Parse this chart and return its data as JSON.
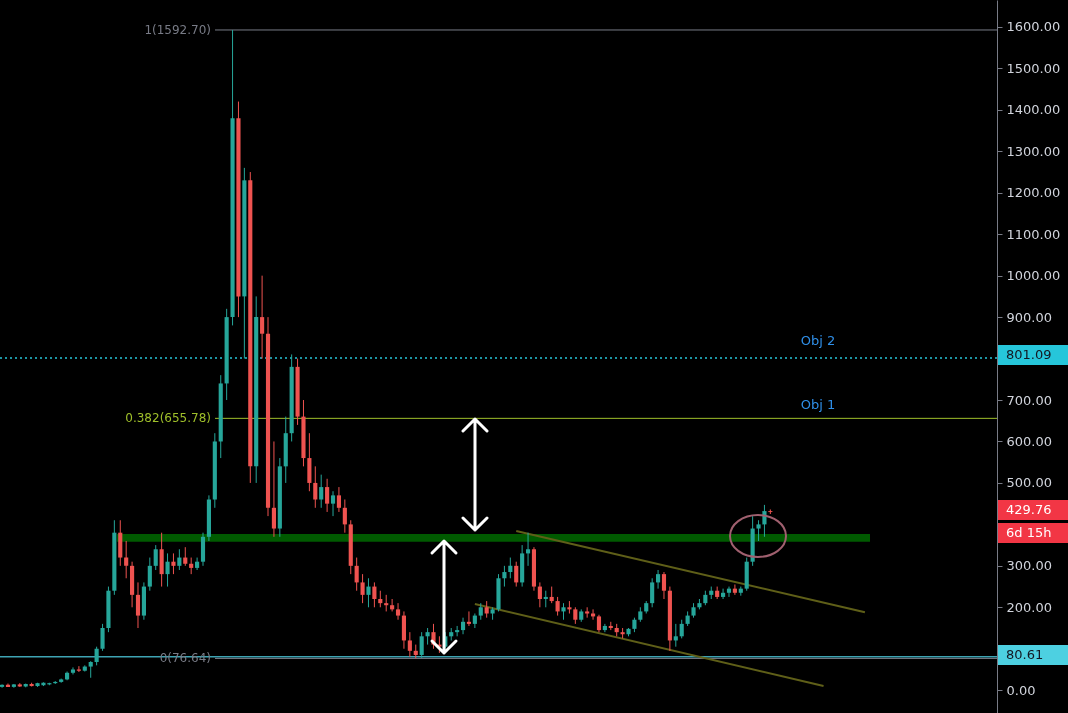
{
  "chart_data": {
    "type": "candlestick",
    "categories": [
      null,
      null,
      null,
      null,
      null,
      null,
      null,
      null,
      null,
      null,
      null,
      null,
      null,
      null,
      null,
      null,
      null,
      null,
      null,
      null,
      null,
      null,
      null,
      null,
      null,
      null,
      null,
      null,
      null,
      null,
      null,
      null,
      null,
      null,
      null,
      null,
      null,
      null,
      null,
      null,
      null,
      null,
      null,
      null,
      null,
      null,
      null,
      null,
      null,
      null,
      null,
      null,
      null,
      null,
      null,
      null,
      null,
      null,
      null,
      null,
      null,
      null,
      null,
      null,
      null,
      null,
      null,
      null,
      null,
      null,
      null,
      null,
      null,
      null,
      null,
      null,
      null,
      null,
      null,
      null,
      null,
      null,
      null,
      null,
      null,
      null,
      null,
      null,
      null,
      null,
      null,
      null,
      null,
      null,
      null,
      null,
      null,
      null,
      null,
      null,
      null,
      null,
      null,
      null,
      null,
      null,
      null,
      null,
      null,
      null,
      null,
      null,
      null,
      null,
      null,
      null,
      null,
      null,
      null,
      null,
      null,
      null,
      null,
      null,
      null,
      null,
      null,
      null,
      null,
      null,
      null,
      null,
      null,
      null,
      null,
      null,
      null,
      null,
      null,
      null,
      null,
      null,
      null,
      null,
      null,
      null,
      null,
      null,
      null,
      null,
      null,
      null,
      null,
      null,
      null,
      null,
      null,
      null,
      null,
      null,
      null,
      null,
      null,
      null,
      null,
      null,
      null,
      null,
      null
    ],
    "ohlc": [
      [
        8,
        14,
        6,
        13
      ],
      [
        13,
        16,
        8,
        8
      ],
      [
        8,
        15,
        6,
        14
      ],
      [
        14,
        17,
        8,
        9
      ],
      [
        9,
        16,
        7,
        15
      ],
      [
        15,
        18,
        9,
        10
      ],
      [
        10,
        18,
        8,
        17
      ],
      [
        12,
        19,
        10,
        18
      ],
      [
        14,
        18,
        12,
        17
      ],
      [
        17,
        22,
        15,
        20
      ],
      [
        20,
        28,
        18,
        26
      ],
      [
        26,
        45,
        24,
        42
      ],
      [
        42,
        55,
        38,
        50
      ],
      [
        50,
        58,
        44,
        47
      ],
      [
        47,
        60,
        45,
        57
      ],
      [
        57,
        70,
        30,
        68
      ],
      [
        68,
        105,
        60,
        100
      ],
      [
        100,
        160,
        95,
        150
      ],
      [
        150,
        250,
        140,
        240
      ],
      [
        240,
        410,
        230,
        380
      ],
      [
        380,
        410,
        300,
        320
      ],
      [
        320,
        360,
        270,
        300
      ],
      [
        300,
        310,
        200,
        230
      ],
      [
        230,
        260,
        150,
        180
      ],
      [
        180,
        260,
        170,
        250
      ],
      [
        250,
        320,
        240,
        300
      ],
      [
        300,
        350,
        290,
        340
      ],
      [
        340,
        380,
        250,
        280
      ],
      [
        280,
        330,
        250,
        310
      ],
      [
        310,
        330,
        280,
        300
      ],
      [
        300,
        340,
        290,
        320
      ],
      [
        320,
        345,
        300,
        305
      ],
      [
        305,
        320,
        280,
        295
      ],
      [
        295,
        320,
        290,
        310
      ],
      [
        310,
        380,
        300,
        370
      ],
      [
        370,
        470,
        360,
        460
      ],
      [
        460,
        620,
        440,
        600
      ],
      [
        600,
        760,
        560,
        740
      ],
      [
        740,
        920,
        700,
        900
      ],
      [
        900,
        1592.7,
        880,
        1380
      ],
      [
        1380,
        1420,
        900,
        950
      ],
      [
        950,
        1260,
        800,
        1230
      ],
      [
        1230,
        1250,
        500,
        540
      ],
      [
        540,
        950,
        500,
        900
      ],
      [
        900,
        1000,
        800,
        860
      ],
      [
        860,
        900,
        420,
        440
      ],
      [
        440,
        600,
        370,
        390
      ],
      [
        390,
        560,
        370,
        540
      ],
      [
        540,
        660,
        500,
        620
      ],
      [
        620,
        810,
        600,
        780
      ],
      [
        780,
        800,
        640,
        660
      ],
      [
        660,
        700,
        540,
        560
      ],
      [
        560,
        620,
        480,
        500
      ],
      [
        500,
        540,
        440,
        460
      ],
      [
        460,
        520,
        440,
        490
      ],
      [
        490,
        510,
        430,
        450
      ],
      [
        450,
        480,
        420,
        470
      ],
      [
        470,
        490,
        430,
        440
      ],
      [
        440,
        460,
        380,
        400
      ],
      [
        400,
        410,
        280,
        300
      ],
      [
        300,
        320,
        240,
        260
      ],
      [
        260,
        280,
        210,
        230
      ],
      [
        230,
        270,
        200,
        250
      ],
      [
        250,
        260,
        200,
        220
      ],
      [
        220,
        240,
        200,
        210
      ],
      [
        210,
        230,
        190,
        205
      ],
      [
        205,
        220,
        190,
        195
      ],
      [
        195,
        210,
        170,
        180
      ],
      [
        180,
        190,
        100,
        120
      ],
      [
        120,
        140,
        80,
        95
      ],
      [
        95,
        110,
        77,
        85
      ],
      [
        85,
        140,
        78,
        130
      ],
      [
        130,
        150,
        110,
        140
      ],
      [
        140,
        160,
        100,
        110
      ],
      [
        110,
        130,
        90,
        105
      ],
      [
        105,
        140,
        100,
        130
      ],
      [
        130,
        150,
        120,
        140
      ],
      [
        140,
        155,
        130,
        145
      ],
      [
        145,
        175,
        135,
        165
      ],
      [
        165,
        190,
        155,
        160
      ],
      [
        160,
        185,
        150,
        180
      ],
      [
        180,
        210,
        170,
        200
      ],
      [
        200,
        215,
        175,
        185
      ],
      [
        185,
        200,
        170,
        195
      ],
      [
        195,
        280,
        190,
        270
      ],
      [
        270,
        300,
        250,
        285
      ],
      [
        285,
        320,
        270,
        300
      ],
      [
        300,
        310,
        250,
        260
      ],
      [
        260,
        350,
        250,
        330
      ],
      [
        330,
        380,
        300,
        340
      ],
      [
        340,
        345,
        240,
        250
      ],
      [
        250,
        260,
        200,
        220
      ],
      [
        220,
        240,
        200,
        225
      ],
      [
        225,
        250,
        210,
        215
      ],
      [
        215,
        225,
        180,
        190
      ],
      [
        190,
        210,
        170,
        200
      ],
      [
        200,
        215,
        185,
        195
      ],
      [
        195,
        200,
        160,
        170
      ],
      [
        170,
        195,
        165,
        190
      ],
      [
        190,
        200,
        175,
        185
      ],
      [
        185,
        195,
        170,
        178
      ],
      [
        178,
        182,
        140,
        145
      ],
      [
        145,
        160,
        140,
        155
      ],
      [
        155,
        165,
        145,
        150
      ],
      [
        150,
        160,
        130,
        140
      ],
      [
        140,
        150,
        125,
        135
      ],
      [
        135,
        150,
        130,
        148
      ],
      [
        148,
        175,
        140,
        170
      ],
      [
        170,
        200,
        165,
        190
      ],
      [
        190,
        215,
        185,
        210
      ],
      [
        210,
        270,
        200,
        260
      ],
      [
        260,
        290,
        245,
        280
      ],
      [
        280,
        285,
        220,
        240
      ],
      [
        240,
        250,
        95,
        120
      ],
      [
        120,
        160,
        105,
        130
      ],
      [
        130,
        170,
        125,
        160
      ],
      [
        160,
        190,
        155,
        180
      ],
      [
        180,
        210,
        175,
        200
      ],
      [
        200,
        220,
        195,
        210
      ],
      [
        210,
        240,
        205,
        230
      ],
      [
        230,
        250,
        220,
        240
      ],
      [
        240,
        250,
        220,
        225
      ],
      [
        225,
        245,
        220,
        235
      ],
      [
        235,
        250,
        225,
        245
      ],
      [
        245,
        255,
        230,
        235
      ],
      [
        235,
        250,
        228,
        245
      ],
      [
        245,
        320,
        240,
        310
      ],
      [
        310,
        420,
        300,
        390
      ],
      [
        390,
        410,
        360,
        400
      ],
      [
        400,
        447,
        370,
        432
      ],
      [
        432,
        436,
        425,
        429.76
      ],
      null,
      null,
      null,
      null,
      null,
      null,
      null,
      null,
      null,
      null,
      null,
      null,
      null,
      null,
      null,
      null,
      null,
      null,
      null,
      null,
      null,
      null,
      null,
      null,
      null,
      null,
      null,
      null,
      null,
      null,
      null,
      null,
      null,
      null,
      null,
      null,
      null,
      null
    ],
    "series": [
      {
        "type": "line",
        "color": "#5f5f18",
        "values": [
          null,
          null,
          null,
          null,
          null,
          null,
          null,
          null,
          null,
          null,
          null,
          null,
          null,
          null,
          null,
          null,
          null,
          null,
          null,
          null,
          null,
          null,
          null,
          null,
          null,
          null,
          null,
          null,
          null,
          null,
          null,
          null,
          null,
          null,
          null,
          null,
          null,
          null,
          null,
          null,
          null,
          null,
          null,
          null,
          null,
          null,
          null,
          null,
          null,
          null,
          null,
          null,
          null,
          null,
          null,
          null,
          null,
          null,
          null,
          null,
          null,
          null,
          null,
          null,
          null,
          null,
          null,
          null,
          null,
          null,
          null,
          null,
          null,
          null,
          null,
          null,
          null,
          null,
          null,
          null,
          null,
          null,
          null,
          null,
          null,
          null,
          null,
          384,
          null,
          null,
          null,
          null,
          null,
          null,
          null,
          null,
          null,
          null,
          null,
          null,
          null,
          null,
          null,
          null,
          null,
          null,
          null,
          null,
          null,
          null,
          null,
          null,
          null,
          null,
          null,
          null,
          null,
          null,
          null,
          null,
          null,
          null,
          null,
          null,
          null,
          null,
          null,
          null,
          null,
          null,
          null,
          null,
          null,
          null,
          null,
          null,
          null,
          null,
          null,
          null,
          null,
          null,
          null,
          null,
          null,
          null,
          188,
          null,
          null,
          null,
          null,
          null,
          null,
          null,
          null,
          null,
          null,
          null,
          null,
          null,
          null,
          null,
          null,
          null,
          null,
          null,
          null,
          null,
          null
        ]
      },
      {
        "type": "line",
        "color": "#5f5f18",
        "values": [
          null,
          null,
          null,
          null,
          null,
          null,
          null,
          null,
          null,
          null,
          null,
          null,
          null,
          null,
          null,
          null,
          null,
          null,
          null,
          null,
          null,
          null,
          null,
          null,
          null,
          null,
          null,
          null,
          null,
          null,
          null,
          null,
          null,
          null,
          null,
          null,
          null,
          null,
          null,
          null,
          null,
          null,
          null,
          null,
          null,
          null,
          null,
          null,
          null,
          null,
          null,
          null,
          null,
          null,
          null,
          null,
          null,
          null,
          null,
          null,
          null,
          null,
          null,
          null,
          null,
          null,
          null,
          null,
          null,
          null,
          null,
          null,
          null,
          null,
          null,
          null,
          null,
          null,
          null,
          null,
          208,
          null,
          null,
          null,
          null,
          null,
          null,
          null,
          null,
          null,
          null,
          null,
          null,
          null,
          null,
          null,
          null,
          null,
          null,
          null,
          null,
          null,
          null,
          null,
          null,
          null,
          null,
          null,
          null,
          null,
          null,
          null,
          null,
          null,
          null,
          null,
          null,
          null,
          null,
          null,
          null,
          null,
          null,
          null,
          null,
          null,
          null,
          null,
          null,
          null,
          null,
          null,
          null,
          null,
          null,
          null,
          null,
          null,
          null,
          10,
          null,
          null,
          null,
          null,
          null,
          null,
          null,
          null,
          null,
          null,
          null,
          null,
          null,
          null,
          null,
          null,
          null,
          null,
          null,
          null,
          null,
          null,
          null,
          null,
          null,
          null,
          null,
          null,
          null
        ]
      }
    ],
    "ylim": [
      -55,
      1665
    ],
    "yticks": [
      {
        "value": 0,
        "label": "0.00"
      },
      {
        "value": 100,
        "label": null
      },
      {
        "value": 200,
        "label": "200.00"
      },
      {
        "value": 300,
        "label": "300.00"
      },
      {
        "value": 400,
        "label": null
      },
      {
        "value": 500,
        "label": "500.00"
      },
      {
        "value": 600,
        "label": "600.00"
      },
      {
        "value": 700,
        "label": "700.00"
      },
      {
        "value": 800,
        "label": null
      },
      {
        "value": 900,
        "label": "900.00"
      },
      {
        "value": 1000,
        "label": "1000.00"
      },
      {
        "value": 1100,
        "label": "1100.00"
      },
      {
        "value": 1200,
        "label": "1200.00"
      },
      {
        "value": 1300,
        "label": "1300.00"
      },
      {
        "value": 1400,
        "label": "1400.00"
      },
      {
        "value": 1500,
        "label": "1500.00"
      },
      {
        "value": 1600,
        "label": "1600.00"
      }
    ],
    "bands": [
      {
        "axis": "y",
        "from": 358,
        "to": 377,
        "color": "#005a00"
      }
    ],
    "ref_lines": [
      {
        "axis": "y",
        "value": 1592.7,
        "label": "1(1592.70)",
        "color": "#787b86"
      },
      {
        "axis": "y",
        "value": 655.78,
        "label": "0.382(655.78)",
        "color": "#9fbf2a"
      },
      {
        "axis": "y",
        "value": 76.64,
        "label": "0(76.64)",
        "color": "#787b86"
      },
      {
        "axis": "y",
        "value": 801.09,
        "color": "#26c6da",
        "line_style": "dotted"
      },
      {
        "axis": "y",
        "value": 80.61,
        "color": "#3ea3b3"
      }
    ],
    "annotations": [
      "Obj 2",
      "Obj 1",
      "801.09",
      "80.61",
      "429.76",
      "6d 15h"
    ],
    "grid": false
  }
}
